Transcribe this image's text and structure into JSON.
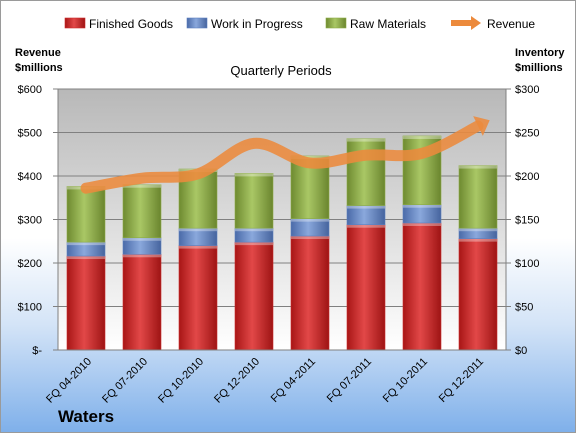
{
  "brand": "Waters",
  "colors": {
    "finished_goods": "#cc2a2a",
    "work_in_progress": "#5b7fbf",
    "raw_materials": "#8cab45",
    "revenue": "#ec8a3c"
  },
  "chart_data": {
    "type": "bar",
    "subtype": "stacked bar with line overlay",
    "title": "Quarterly Periods",
    "left_axis_label": [
      "Revenue",
      "$millions"
    ],
    "right_axis_label": [
      "Inventory",
      "$millions"
    ],
    "categories": [
      "FQ 04-2010",
      "FQ 07-2010",
      "FQ 10-2010",
      "FQ 12-2010",
      "FQ 04-2011",
      "FQ 07-2011",
      "FQ 10-2011",
      "FQ 12-2011"
    ],
    "left_axis": {
      "range": [
        0,
        600
      ],
      "ticks": [
        "$-",
        "$100",
        "$200",
        "$300",
        "$400",
        "$500",
        "$600"
      ]
    },
    "right_axis": {
      "range": [
        0,
        300
      ],
      "ticks": [
        "$0",
        "$50",
        "$100",
        "$150",
        "$200",
        "$250",
        "$300"
      ]
    },
    "grid": true,
    "legend_position": "top",
    "series": [
      {
        "name": "Finished Goods",
        "axis": "right",
        "kind": "bar",
        "values": [
          108,
          110,
          120,
          124,
          131,
          144,
          146,
          128
        ]
      },
      {
        "name": "Work in Progress",
        "axis": "right",
        "kind": "bar",
        "values": [
          16,
          19,
          20,
          16,
          20,
          22,
          21,
          12
        ]
      },
      {
        "name": "Raw Materials",
        "axis": "right",
        "kind": "bar",
        "values": [
          64,
          61,
          68,
          63,
          72,
          77,
          79,
          72
        ]
      },
      {
        "name": "Revenue",
        "axis": "left",
        "kind": "line",
        "values": [
          372,
          395,
          405,
          475,
          430,
          448,
          452,
          515
        ]
      }
    ]
  }
}
